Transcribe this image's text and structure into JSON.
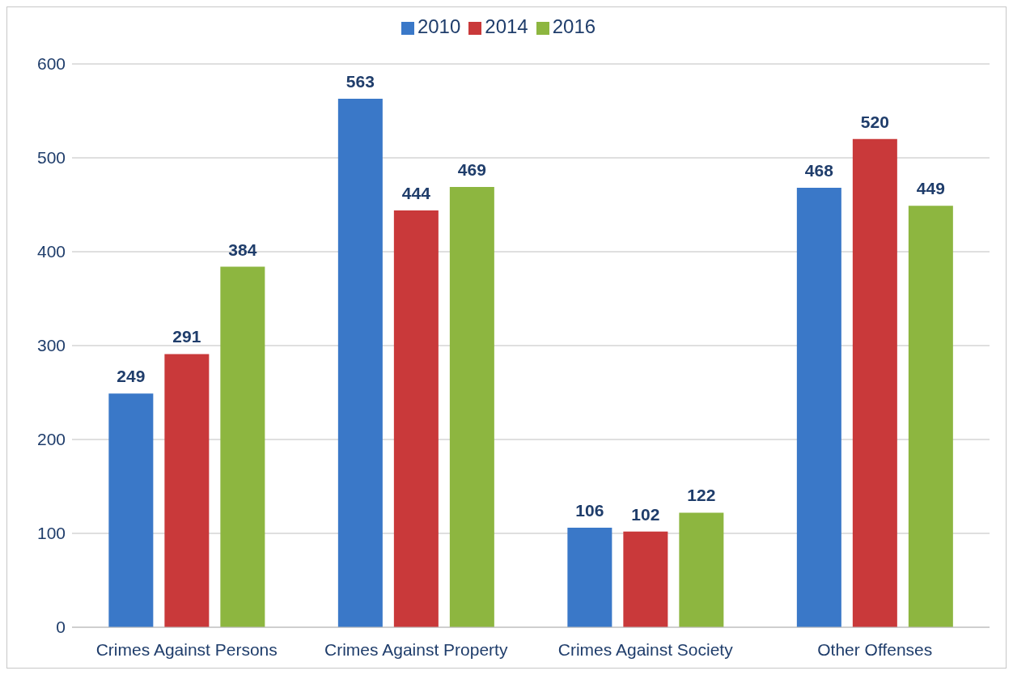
{
  "chart_data": {
    "type": "bar",
    "categories": [
      "Crimes Against Persons",
      "Crimes Against Property",
      "Crimes Against Society",
      "Other Offenses"
    ],
    "series": [
      {
        "name": "2010",
        "color": "#3a78c8",
        "values": [
          249,
          563,
          106,
          468
        ]
      },
      {
        "name": "2014",
        "color": "#c9393a",
        "values": [
          291,
          444,
          102,
          520
        ]
      },
      {
        "name": "2016",
        "color": "#8db640",
        "values": [
          384,
          469,
          122,
          449
        ]
      }
    ],
    "ylim": [
      0,
      600
    ],
    "yticks": [
      0,
      100,
      200,
      300,
      400,
      500,
      600
    ],
    "grid": "y",
    "legend": "top",
    "data_labels": true
  }
}
